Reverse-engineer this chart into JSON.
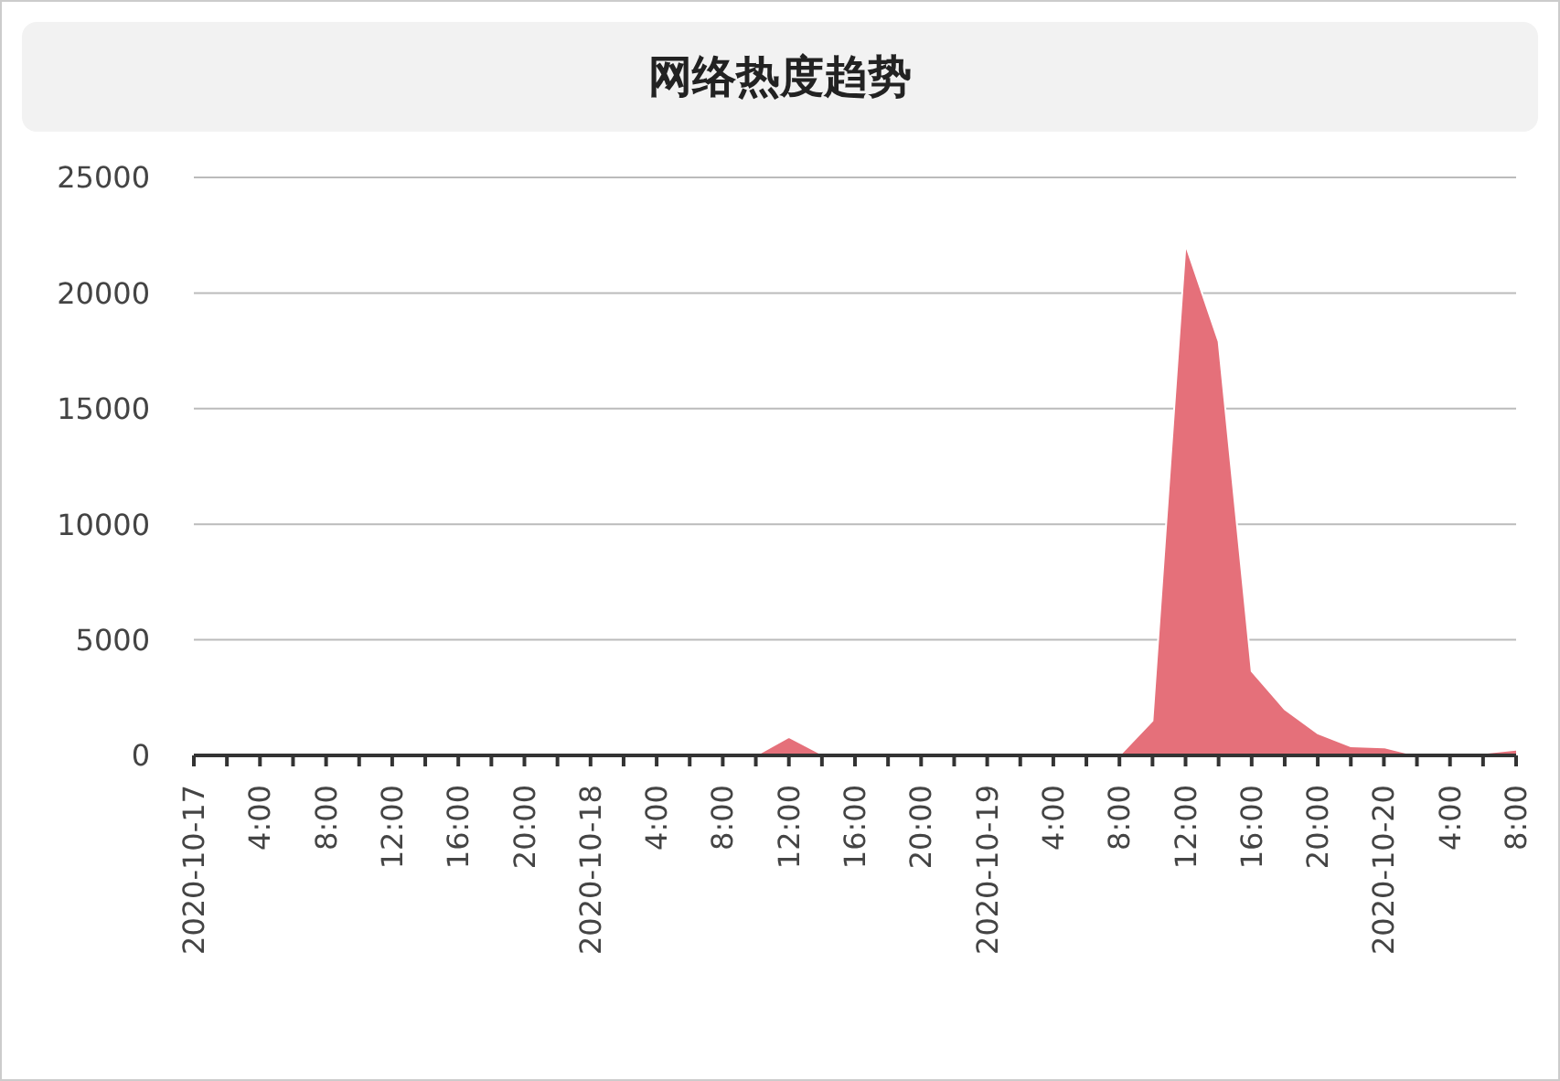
{
  "chart_data": {
    "type": "area",
    "title": "网络热度趋势",
    "x": [
      "2020-10-17T00:00",
      "2020-10-17T02:00",
      "2020-10-17T04:00",
      "2020-10-17T06:00",
      "2020-10-17T08:00",
      "2020-10-17T10:00",
      "2020-10-17T12:00",
      "2020-10-17T14:00",
      "2020-10-17T16:00",
      "2020-10-17T18:00",
      "2020-10-17T20:00",
      "2020-10-17T22:00",
      "2020-10-18T00:00",
      "2020-10-18T02:00",
      "2020-10-18T04:00",
      "2020-10-18T06:00",
      "2020-10-18T08:00",
      "2020-10-18T10:00",
      "2020-10-18T12:00",
      "2020-10-18T14:00",
      "2020-10-18T16:00",
      "2020-10-18T18:00",
      "2020-10-18T20:00",
      "2020-10-18T22:00",
      "2020-10-19T00:00",
      "2020-10-19T02:00",
      "2020-10-19T04:00",
      "2020-10-19T06:00",
      "2020-10-19T08:00",
      "2020-10-19T10:00",
      "2020-10-19T12:00",
      "2020-10-19T14:00",
      "2020-10-19T16:00",
      "2020-10-19T18:00",
      "2020-10-19T20:00",
      "2020-10-19T22:00",
      "2020-10-20T00:00",
      "2020-10-20T02:00",
      "2020-10-20T04:00",
      "2020-10-20T06:00",
      "2020-10-20T08:00"
    ],
    "series": [
      {
        "color": "#e5707a",
        "values": [
          0,
          0,
          0,
          0,
          0,
          0,
          0,
          0,
          0,
          0,
          0,
          0,
          0,
          0,
          0,
          0,
          0,
          0,
          800,
          50,
          50,
          0,
          0,
          0,
          0,
          0,
          0,
          0,
          0,
          1500,
          22100,
          17900,
          3650,
          2000,
          950,
          400,
          350,
          0,
          50,
          100,
          250
        ]
      }
    ],
    "xlim": [
      "2020-10-17T00:00",
      "2020-10-20T08:00"
    ],
    "xticks": [
      {
        "value": "2020-10-17T00:00",
        "label": "2020-10-17"
      },
      {
        "value": "2020-10-17T02:00",
        "label": null
      },
      {
        "value": "2020-10-17T04:00",
        "label": "4:00"
      },
      {
        "value": "2020-10-17T06:00",
        "label": null
      },
      {
        "value": "2020-10-17T08:00",
        "label": "8:00"
      },
      {
        "value": "2020-10-17T10:00",
        "label": null
      },
      {
        "value": "2020-10-17T12:00",
        "label": "12:00"
      },
      {
        "value": "2020-10-17T14:00",
        "label": null
      },
      {
        "value": "2020-10-17T16:00",
        "label": "16:00"
      },
      {
        "value": "2020-10-17T18:00",
        "label": null
      },
      {
        "value": "2020-10-17T20:00",
        "label": "20:00"
      },
      {
        "value": "2020-10-17T22:00",
        "label": null
      },
      {
        "value": "2020-10-18T00:00",
        "label": "2020-10-18"
      },
      {
        "value": "2020-10-18T02:00",
        "label": null
      },
      {
        "value": "2020-10-18T04:00",
        "label": "4:00"
      },
      {
        "value": "2020-10-18T06:00",
        "label": null
      },
      {
        "value": "2020-10-18T08:00",
        "label": "8:00"
      },
      {
        "value": "2020-10-18T10:00",
        "label": null
      },
      {
        "value": "2020-10-18T12:00",
        "label": "12:00"
      },
      {
        "value": "2020-10-18T14:00",
        "label": null
      },
      {
        "value": "2020-10-18T16:00",
        "label": "16:00"
      },
      {
        "value": "2020-10-18T18:00",
        "label": null
      },
      {
        "value": "2020-10-18T20:00",
        "label": "20:00"
      },
      {
        "value": "2020-10-18T22:00",
        "label": null
      },
      {
        "value": "2020-10-19T00:00",
        "label": "2020-10-19"
      },
      {
        "value": "2020-10-19T02:00",
        "label": null
      },
      {
        "value": "2020-10-19T04:00",
        "label": "4:00"
      },
      {
        "value": "2020-10-19T06:00",
        "label": null
      },
      {
        "value": "2020-10-19T08:00",
        "label": "8:00"
      },
      {
        "value": "2020-10-19T10:00",
        "label": null
      },
      {
        "value": "2020-10-19T12:00",
        "label": "12:00"
      },
      {
        "value": "2020-10-19T14:00",
        "label": null
      },
      {
        "value": "2020-10-19T16:00",
        "label": "16:00"
      },
      {
        "value": "2020-10-19T18:00",
        "label": null
      },
      {
        "value": "2020-10-19T20:00",
        "label": "20:00"
      },
      {
        "value": "2020-10-19T22:00",
        "label": null
      },
      {
        "value": "2020-10-20T00:00",
        "label": "2020-10-20"
      },
      {
        "value": "2020-10-20T02:00",
        "label": null
      },
      {
        "value": "2020-10-20T04:00",
        "label": "4:00"
      },
      {
        "value": "2020-10-20T06:00",
        "label": null
      },
      {
        "value": "2020-10-20T08:00",
        "label": "8:00"
      }
    ],
    "ylim": [
      0,
      25000
    ],
    "yticks": [
      0,
      5000,
      10000,
      15000,
      20000,
      25000
    ],
    "grid": "y"
  }
}
